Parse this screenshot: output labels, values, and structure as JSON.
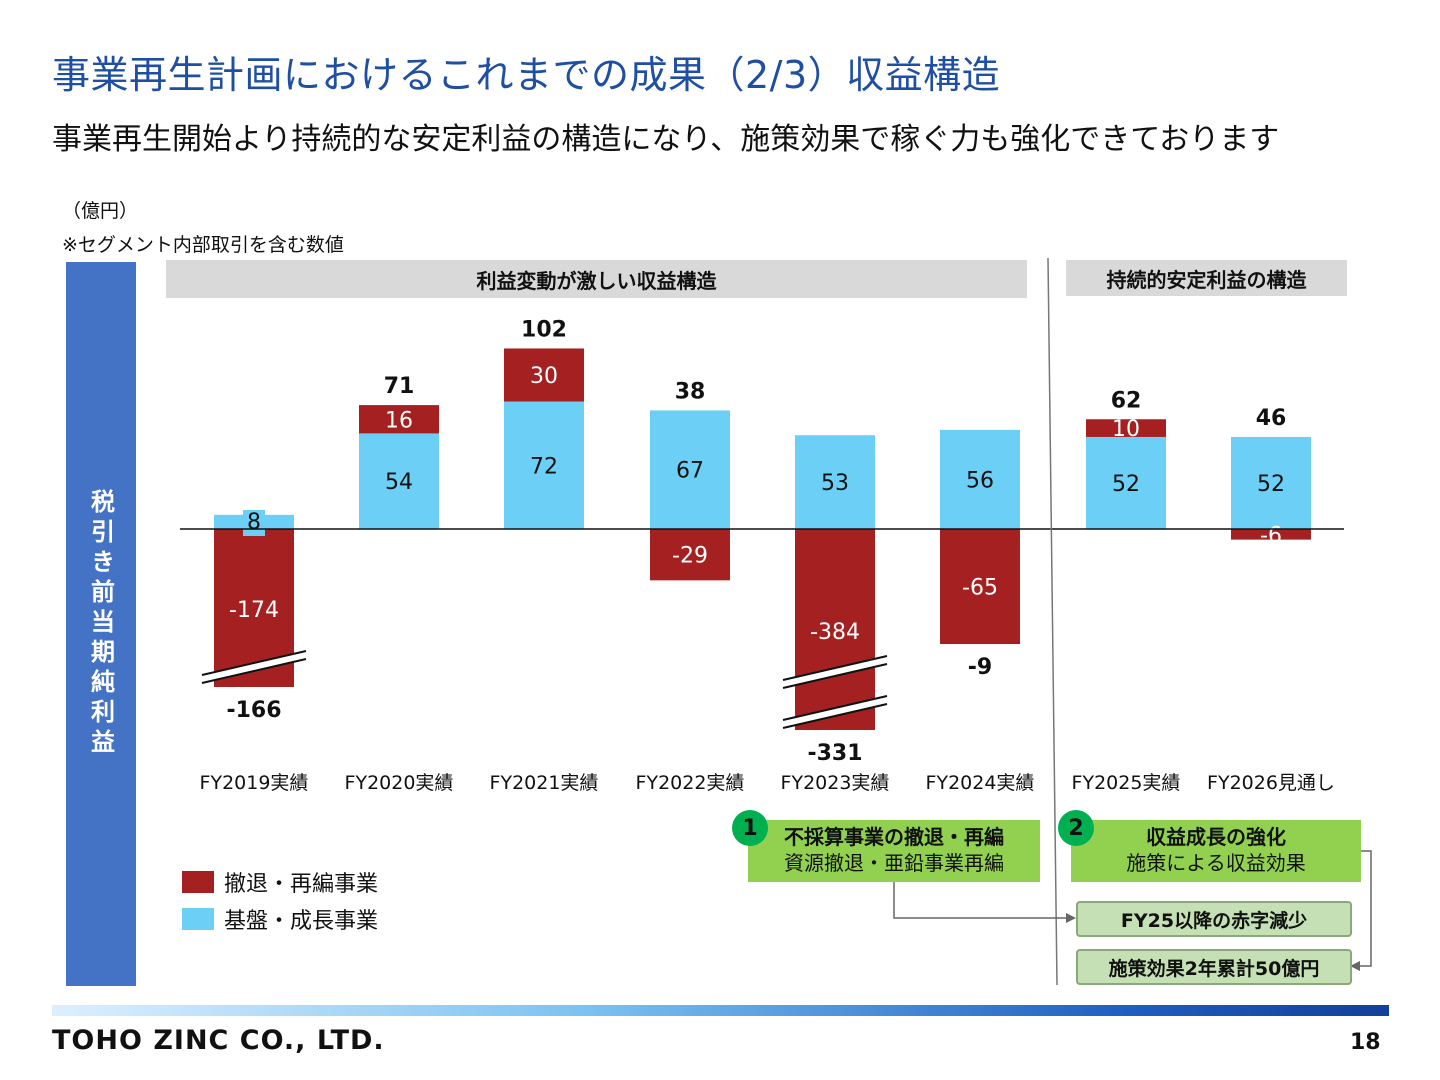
{
  "title": "事業再生計画におけるこれまでの成果（2/3）収益構造",
  "subtitle": "事業再生開始より持続的な安定利益の構造になり、施策効果で稼ぐ力も強化できております",
  "unit": "（億円）",
  "note": "※セグメント内部取引を含む数値",
  "y_axis_label": "税引き前当期純利益",
  "band_left": "利益変動が激しい収益構造",
  "band_right": "持続的安定利益の構造",
  "colors": {
    "red": "#a52121",
    "blue": "#6ccff6",
    "accent": "#1f4fa3",
    "green": "#92d050"
  },
  "chart_data": {
    "type": "bar",
    "stacked": true,
    "categories": [
      "FY2019実績",
      "FY2020実績",
      "FY2021実績",
      "FY2022実績",
      "FY2023実績",
      "FY2024実績",
      "FY2025実績",
      "FY2026見通し"
    ],
    "series": [
      {
        "name": "基盤・成長事業",
        "values": [
          8,
          54,
          72,
          67,
          53,
          56,
          52,
          52
        ]
      },
      {
        "name": "撤退・再編事業",
        "values": [
          -174,
          16,
          30,
          -29,
          -384,
          -65,
          10,
          -6
        ]
      }
    ],
    "totals": [
      -166,
      71,
      102,
      38,
      -331,
      -9,
      62,
      46
    ],
    "axis_breaks": [
      "FY2019実績",
      "FY2023実績"
    ]
  },
  "legend": {
    "red_label": "撤退・再編事業",
    "blue_label": "基盤・成長事業"
  },
  "box1": {
    "number": "1",
    "title": "不採算事業の撤退・再編",
    "text": "資源撤退・亜鉛事業再編"
  },
  "box2": {
    "number": "2",
    "title": "収益成長の強化",
    "text": "施策による収益効果"
  },
  "pill1": "FY25以降の赤字減少",
  "pill2": "施策効果2年累計50億円",
  "footer": {
    "company": "TOHO ZINC CO., LTD.",
    "page": "18"
  }
}
